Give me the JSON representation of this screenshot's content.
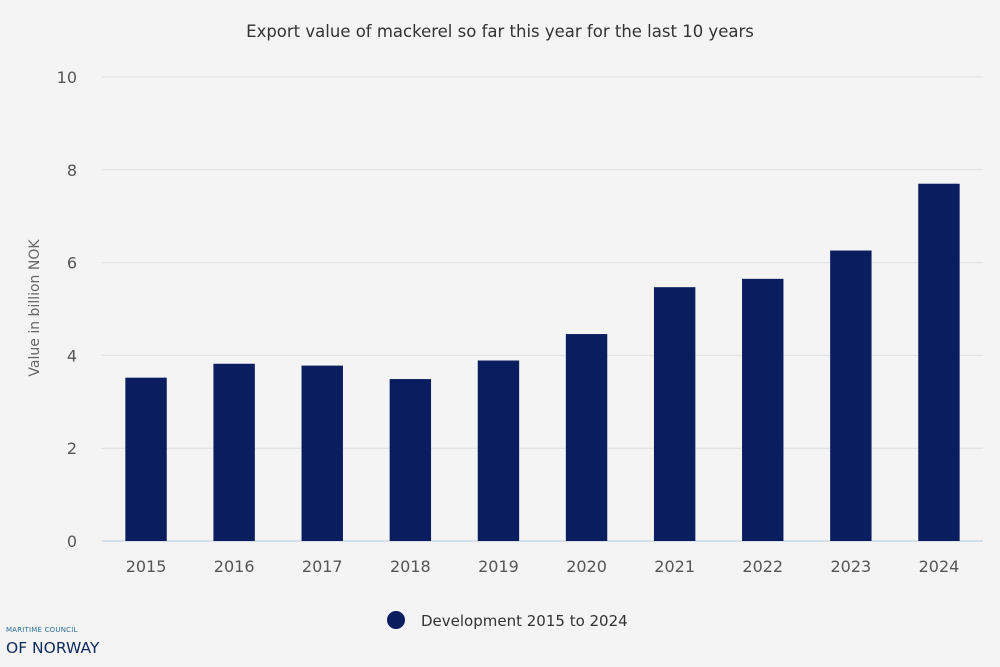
{
  "chart_data": {
    "type": "bar",
    "title": "Export value of mackerel so far this year for the last 10 years",
    "xlabel": "",
    "ylabel": "Value in billion NOK",
    "categories": [
      "2015",
      "2016",
      "2017",
      "2018",
      "2019",
      "2020",
      "2021",
      "2022",
      "2023",
      "2024"
    ],
    "series": [
      {
        "name": "Development 2015 to 2024",
        "values": [
          3.52,
          3.82,
          3.78,
          3.49,
          3.89,
          4.46,
          5.47,
          5.65,
          6.26,
          7.7
        ],
        "color": "#0a1d5f"
      }
    ],
    "ylim": [
      0,
      10
    ],
    "yticks": [
      0,
      2,
      4,
      6,
      8,
      10
    ],
    "grid": true,
    "legend": "bottom-center"
  },
  "logo": {
    "line1": "MARITIME COUNCIL",
    "line2": "OF NORWAY"
  },
  "colors": {
    "background": "#f3f4f3",
    "grid": "#dde0e3",
    "axis": "#b9cde0",
    "bar": "#0a1d5f"
  }
}
